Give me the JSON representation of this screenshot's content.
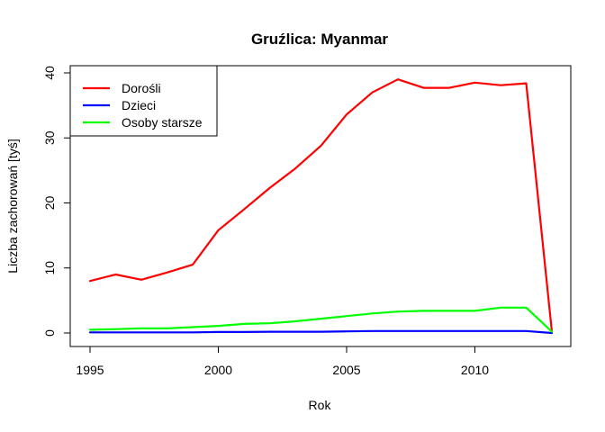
{
  "chart_data": {
    "type": "line",
    "title": "Gruźlica: Myanmar",
    "xlabel": "Rok",
    "ylabel": "Liczba zachorowań [tyś]",
    "xlim": [
      1995,
      2013
    ],
    "ylim": [
      0,
      40
    ],
    "xticks": [
      1995,
      2000,
      2005,
      2010
    ],
    "yticks": [
      0,
      10,
      20,
      30,
      40
    ],
    "x": [
      1995,
      1996,
      1997,
      1998,
      1999,
      2000,
      2001,
      2002,
      2003,
      2004,
      2005,
      2006,
      2007,
      2008,
      2009,
      2010,
      2011,
      2012,
      2013
    ],
    "series": [
      {
        "name": "Dorośli",
        "color": "#ff0000",
        "values": [
          8.0,
          9.0,
          8.2,
          9.3,
          10.5,
          15.8,
          19.0,
          22.3,
          25.3,
          28.8,
          33.6,
          37.0,
          39.0,
          37.7,
          37.7,
          38.5,
          38.1,
          38.4,
          0.2
        ]
      },
      {
        "name": "Dzieci",
        "color": "#0000ff",
        "values": [
          0.1,
          0.1,
          0.1,
          0.1,
          0.1,
          0.15,
          0.15,
          0.2,
          0.2,
          0.2,
          0.25,
          0.3,
          0.3,
          0.3,
          0.3,
          0.3,
          0.3,
          0.3,
          0.0
        ]
      },
      {
        "name": "Osoby starsze",
        "color": "#00ff00",
        "values": [
          0.5,
          0.6,
          0.7,
          0.7,
          0.9,
          1.1,
          1.4,
          1.5,
          1.8,
          2.2,
          2.6,
          3.0,
          3.3,
          3.4,
          3.4,
          3.4,
          3.9,
          3.9,
          0.2
        ]
      }
    ],
    "legend": {
      "position": "top-left"
    },
    "grid": false
  }
}
